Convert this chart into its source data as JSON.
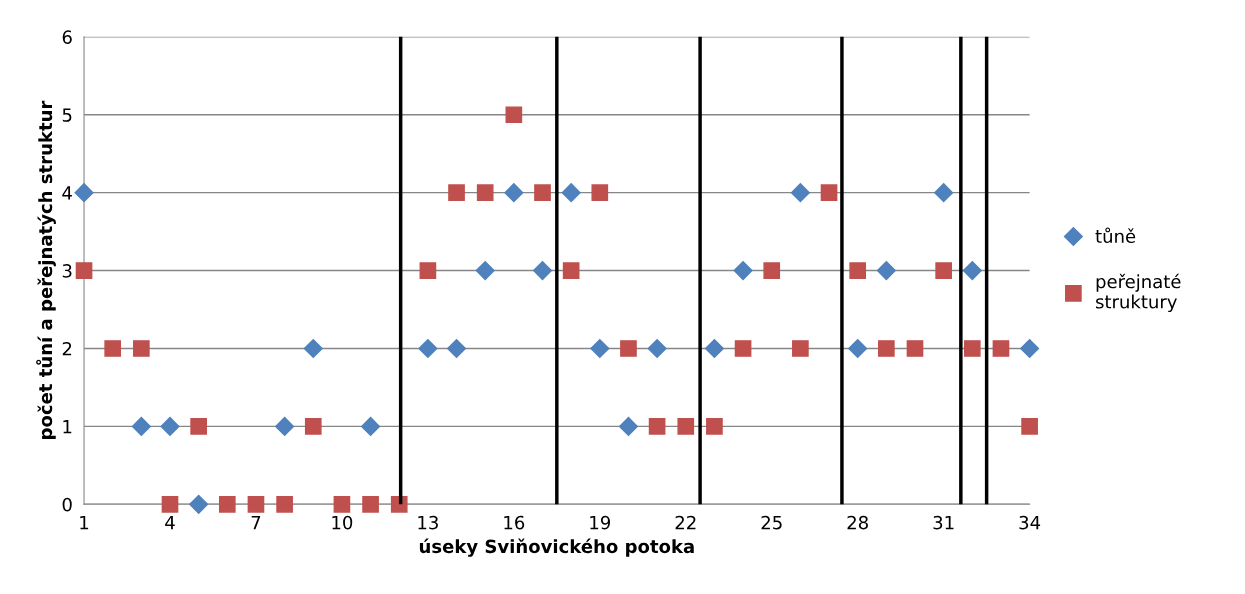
{
  "chart_data": {
    "type": "scatter",
    "xlabel": "úseky Sviňovického potoka",
    "ylabel": "počet tůní a peřejnatých struktur",
    "x": [
      1,
      2,
      3,
      4,
      5,
      6,
      7,
      8,
      9,
      10,
      11,
      12,
      13,
      14,
      15,
      16,
      17,
      18,
      19,
      20,
      21,
      22,
      23,
      24,
      25,
      26,
      27,
      28,
      29,
      30,
      31,
      32,
      33,
      34
    ],
    "series": [
      {
        "name": "tůně",
        "color": "#4f81bd",
        "marker": "diamond",
        "values": [
          4,
          null,
          1,
          1,
          0,
          null,
          null,
          1,
          2,
          null,
          1,
          null,
          2,
          2,
          3,
          4,
          3,
          4,
          2,
          1,
          2,
          null,
          2,
          3,
          null,
          4,
          null,
          2,
          3,
          null,
          4,
          3,
          null,
          2
        ]
      },
      {
        "name": "peřejnaté struktury",
        "color": "#c0504d",
        "marker": "square",
        "values": [
          3,
          2,
          2,
          0,
          1,
          0,
          0,
          0,
          1,
          0,
          0,
          0,
          3,
          4,
          4,
          5,
          4,
          3,
          4,
          2,
          1,
          1,
          1,
          2,
          3,
          2,
          4,
          3,
          2,
          2,
          3,
          2,
          2,
          1
        ]
      }
    ],
    "ref_lines": [
      {
        "axis": "x",
        "value": 12.05,
        "color": "#000000"
      },
      {
        "axis": "x",
        "value": 17.5,
        "color": "#000000"
      },
      {
        "axis": "x",
        "value": 22.5,
        "color": "#000000"
      },
      {
        "axis": "x",
        "value": 27.45,
        "color": "#000000"
      },
      {
        "axis": "x",
        "value": 31.6,
        "color": "#000000"
      },
      {
        "axis": "x",
        "value": 32.5,
        "color": "#000000"
      }
    ],
    "xlim": [
      1,
      34
    ],
    "xticks": [
      1,
      4,
      7,
      10,
      13,
      16,
      19,
      22,
      25,
      28,
      31,
      34
    ],
    "ylim": [
      0,
      6
    ],
    "yticks": [
      0,
      1,
      2,
      3,
      4,
      5,
      6
    ],
    "grid": "y",
    "legend": "right"
  }
}
